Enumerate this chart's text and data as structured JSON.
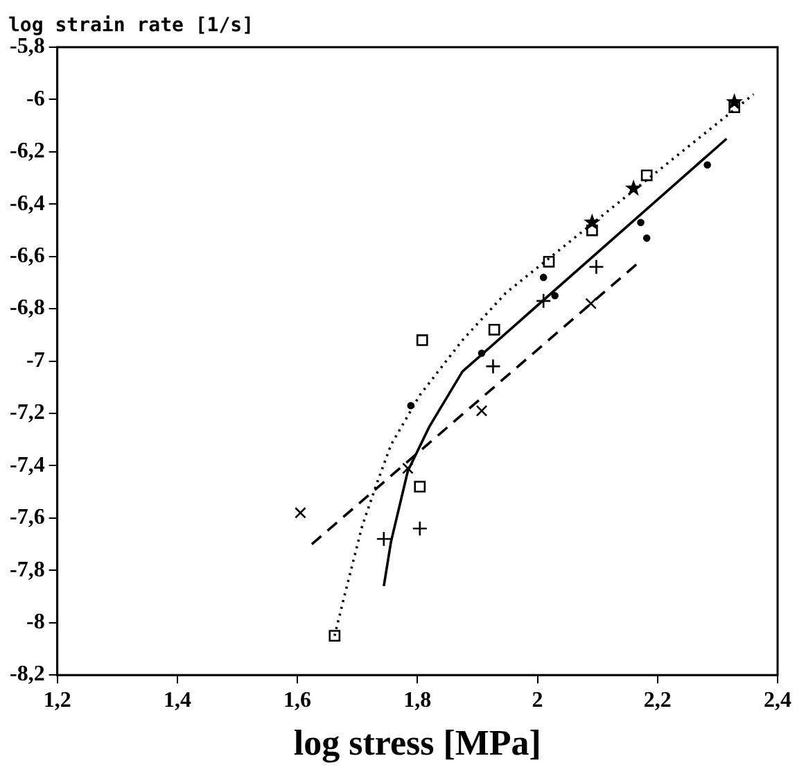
{
  "chart_data": {
    "type": "scatter",
    "xlabel": "log stress [MPa]",
    "ylabel": "log strain rate [1/s]",
    "xlim": [
      1.2,
      2.4
    ],
    "ylim": [
      -8.2,
      -5.8
    ],
    "xticks": [
      {
        "value": 1.2,
        "label": "1,2"
      },
      {
        "value": 1.4,
        "label": "1,4"
      },
      {
        "value": 1.6,
        "label": "1,6"
      },
      {
        "value": 1.8,
        "label": "1,8"
      },
      2,
      {
        "value": 2.2,
        "label": "2,2"
      },
      {
        "value": 2.4,
        "label": "2,4"
      }
    ],
    "yticks": [
      {
        "value": -8.2,
        "label": "-8,2"
      },
      -8,
      {
        "value": -7.8,
        "label": "-7,8"
      },
      {
        "value": -7.6,
        "label": "-7,6"
      },
      {
        "value": -7.4,
        "label": "-7,4"
      },
      {
        "value": -7.2,
        "label": "-7,2"
      },
      -7,
      {
        "value": -6.8,
        "label": "-6,8"
      },
      {
        "value": -6.6,
        "label": "-6,6"
      },
      {
        "value": -6.4,
        "label": "-6,4"
      },
      {
        "value": -6.2,
        "label": "-6,2"
      },
      -6,
      {
        "value": -5.8,
        "label": "-5,8"
      }
    ],
    "grid": false,
    "legend": false,
    "series": [
      {
        "type": "line",
        "marker": "none",
        "line_style": "dotted",
        "color": "#000000",
        "x": [
          1.662,
          1.677,
          1.708,
          1.732,
          1.756,
          1.804,
          1.875,
          1.947,
          2.36
        ],
        "values": [
          -8.05,
          -7.91,
          -7.63,
          -7.47,
          -7.32,
          -7.13,
          -6.92,
          -6.74,
          -5.98
        ]
      },
      {
        "type": "line",
        "marker": "none",
        "line_style": "solid",
        "color": "#000000",
        "x": [
          1.744,
          1.756,
          1.784,
          1.82,
          1.875,
          1.964,
          2.315
        ],
        "values": [
          -7.86,
          -7.69,
          -7.42,
          -7.25,
          -7.04,
          -6.86,
          -6.15
        ]
      },
      {
        "type": "line",
        "marker": "none",
        "line_style": "dashed",
        "color": "#000000",
        "x": [
          1.624,
          2.165
        ],
        "values": [
          -7.7,
          -6.63
        ]
      },
      {
        "marker": "square",
        "color": "#000000",
        "x": [
          1.662,
          1.804,
          1.808,
          1.928,
          2.019,
          2.091,
          2.182,
          2.328
        ],
        "values": [
          -8.05,
          -7.48,
          -6.92,
          -6.88,
          -6.62,
          -6.5,
          -6.29,
          -6.03
        ]
      },
      {
        "marker": "cross",
        "color": "#000000",
        "x": [
          1.744,
          1.804,
          1.926,
          2.01,
          2.098
        ],
        "values": [
          -7.68,
          -7.64,
          -7.02,
          -6.77,
          -6.64
        ]
      },
      {
        "marker": "x",
        "color": "#000000",
        "x": [
          1.605,
          1.784,
          1.907,
          2.089
        ],
        "values": [
          -7.58,
          -7.41,
          -7.19,
          -6.78
        ]
      },
      {
        "marker": "star",
        "color": "#000000",
        "x": [
          2.091,
          2.16,
          2.328
        ],
        "values": [
          -6.47,
          -6.34,
          -6.01
        ]
      },
      {
        "marker": "circle",
        "color": "#000000",
        "x": [
          1.789,
          1.907,
          2.01,
          2.029,
          2.172,
          2.182,
          2.283
        ],
        "values": [
          -7.17,
          -6.97,
          -6.68,
          -6.75,
          -6.47,
          -6.53,
          -6.25
        ]
      }
    ]
  }
}
